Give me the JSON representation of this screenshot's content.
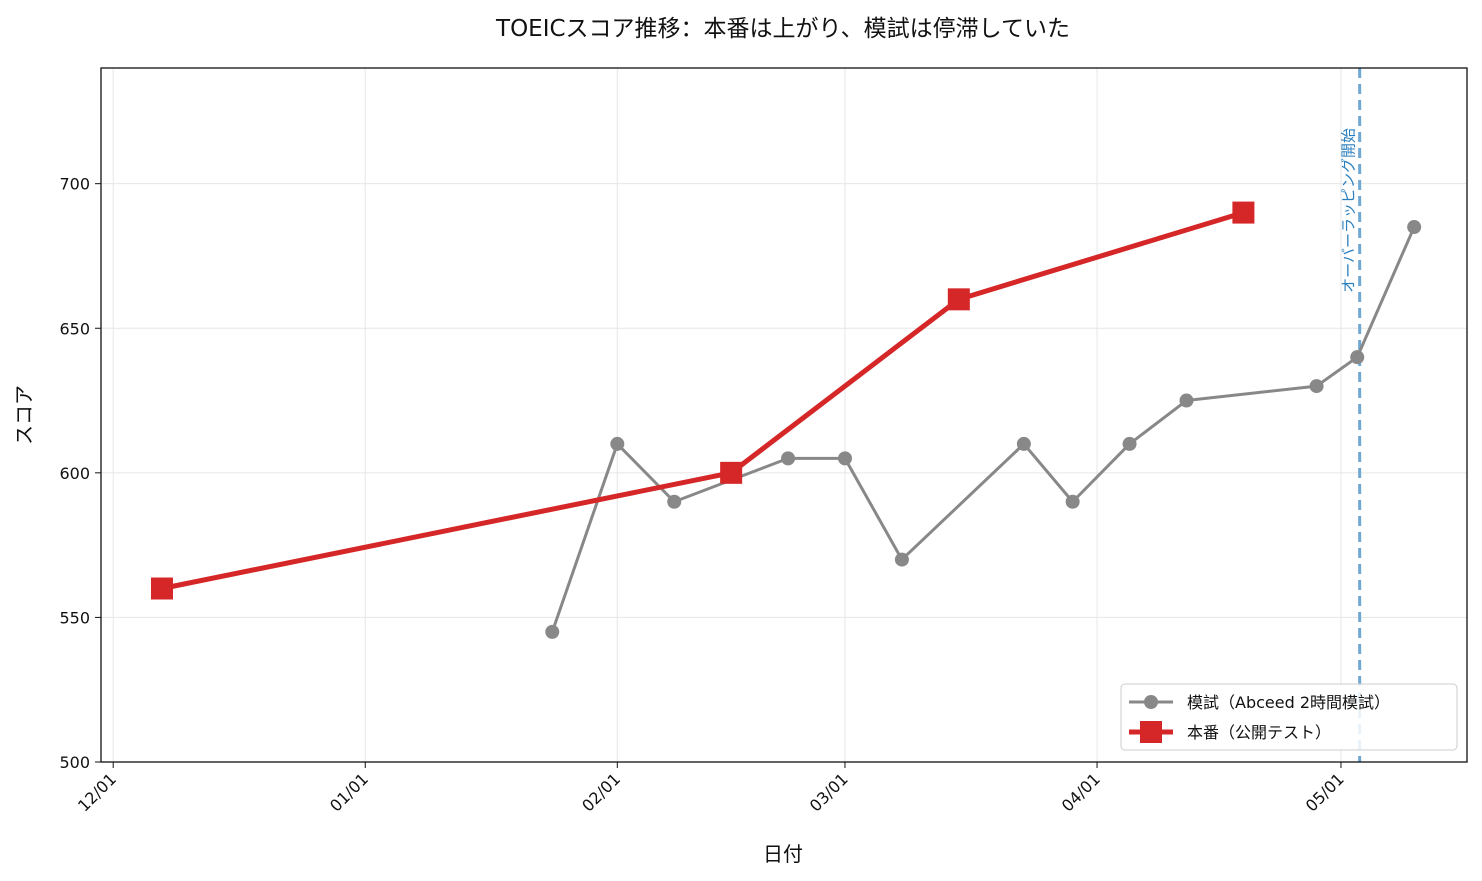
{
  "chart_data": {
    "type": "line",
    "title": "TOEICスコア推移：本番は上がり、模試は停滞していた",
    "xlabel": "日付",
    "ylabel": "スコア",
    "x_tick_labels": [
      "12/01",
      "01/01",
      "02/01",
      "03/01",
      "04/01",
      "05/01"
    ],
    "x_ticks_days": [
      0,
      31,
      62,
      90,
      121,
      151
    ],
    "xlim_days": [
      -1.5,
      166.5
    ],
    "ylim": [
      500,
      740
    ],
    "y_ticks": [
      500,
      550,
      600,
      650,
      700
    ],
    "grid": true,
    "legend_position": "bottom-right",
    "series": [
      {
        "name": "模試（Abceed 2時間模試）",
        "color": "#888888",
        "marker": "circle",
        "points": [
          {
            "x": "01/24",
            "day": 54,
            "y": 545
          },
          {
            "x": "02/01",
            "day": 62,
            "y": 610
          },
          {
            "x": "02/08",
            "day": 69,
            "y": 590
          },
          {
            "x": "02/22",
            "day": 83,
            "y": 605
          },
          {
            "x": "03/01",
            "day": 90,
            "y": 605
          },
          {
            "x": "03/08",
            "day": 97,
            "y": 570
          },
          {
            "x": "03/23",
            "day": 112,
            "y": 610
          },
          {
            "x": "03/29",
            "day": 118,
            "y": 590
          },
          {
            "x": "04/05",
            "day": 125,
            "y": 610
          },
          {
            "x": "04/12",
            "day": 132,
            "y": 625
          },
          {
            "x": "04/28",
            "day": 148,
            "y": 630
          },
          {
            "x": "05/03",
            "day": 153,
            "y": 640
          },
          {
            "x": "05/10",
            "day": 160,
            "y": 685
          }
        ]
      },
      {
        "name": "本番（公開テスト）",
        "color": "#d62728",
        "marker": "square",
        "points": [
          {
            "x": "12/07",
            "day": 6,
            "y": 560
          },
          {
            "x": "02/15",
            "day": 76,
            "y": 600
          },
          {
            "x": "03/15",
            "day": 104,
            "y": 660
          },
          {
            "x": "04/19",
            "day": 139,
            "y": 690
          }
        ]
      }
    ],
    "annotations": [
      {
        "text": "オーバーラッピング開始",
        "day": 153.3,
        "color": "#2b7fbf",
        "line_style": "dashed"
      }
    ]
  }
}
